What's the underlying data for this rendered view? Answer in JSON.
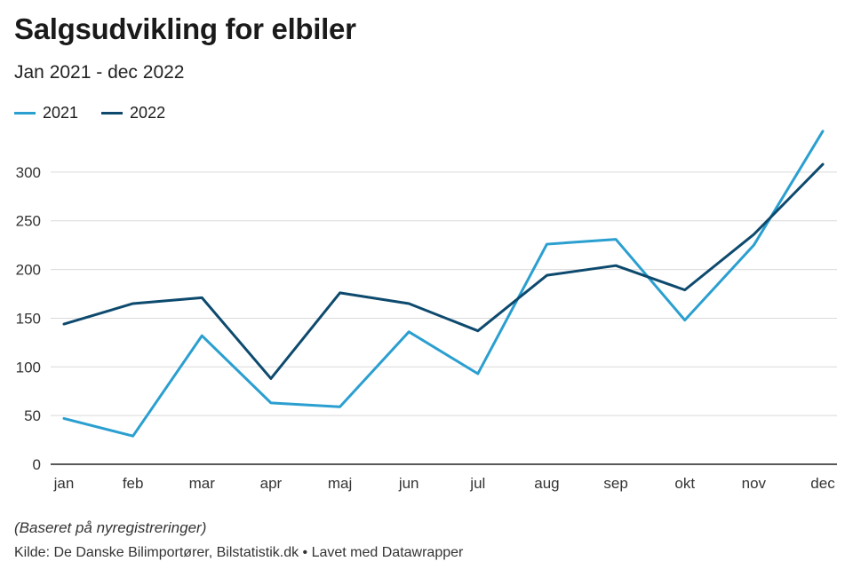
{
  "header": {
    "title": "Salgsudvikling for elbiler",
    "subtitle": "Jan 2021 - dec 2022"
  },
  "footer": {
    "note": "(Baseret på nyregistreringer)",
    "source": "Kilde: De Danske Bilimportører, Bilstatistik.dk • Lavet med Datawrapper"
  },
  "chart_data": {
    "type": "line",
    "title": "Salgsudvikling for elbiler",
    "subtitle": "Jan 2021 - dec 2022",
    "xlabel": "",
    "ylabel": "",
    "categories": [
      "jan",
      "feb",
      "mar",
      "apr",
      "maj",
      "jun",
      "jul",
      "aug",
      "sep",
      "okt",
      "nov",
      "dec"
    ],
    "yticks": [
      0,
      50,
      100,
      150,
      200,
      250,
      300
    ],
    "ylim": [
      0,
      340
    ],
    "grid": true,
    "legend_position": "top-left",
    "series": [
      {
        "name": "2021",
        "color": "#2a9fd0",
        "values": [
          47,
          29,
          132,
          63,
          59,
          136,
          93,
          226,
          231,
          148,
          225,
          342
        ]
      },
      {
        "name": "2022",
        "color": "#0d4a6e",
        "values": [
          144,
          165,
          171,
          88,
          176,
          165,
          137,
          194,
          204,
          179,
          236,
          308
        ]
      }
    ]
  }
}
